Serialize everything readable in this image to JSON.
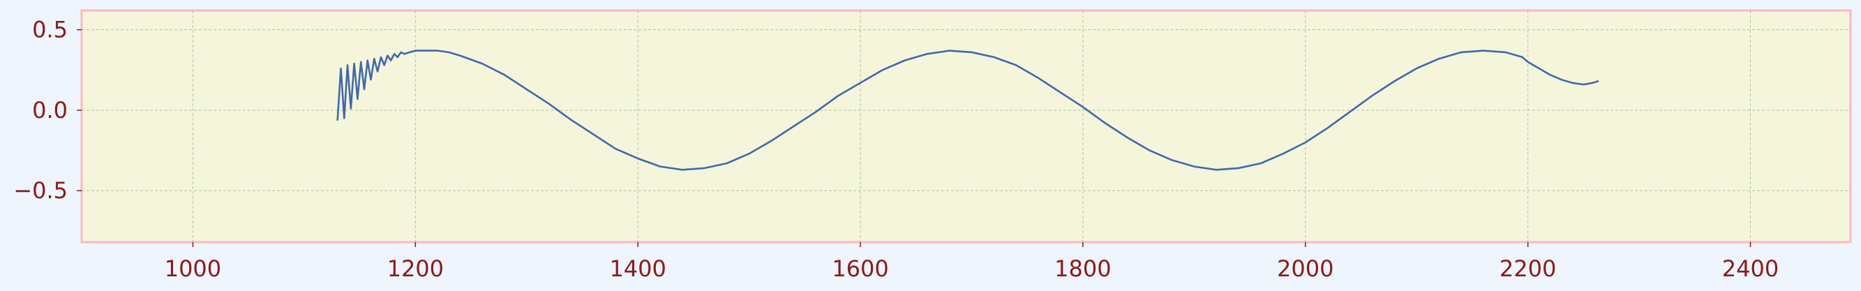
{
  "chart_data": {
    "type": "line",
    "title": "",
    "xlabel": "",
    "ylabel": "",
    "xlim": [
      900,
      2490
    ],
    "ylim": [
      -0.82,
      0.62
    ],
    "x_ticks": [
      1000,
      1200,
      1400,
      1600,
      1800,
      2000,
      2200,
      2400
    ],
    "y_ticks": [
      -0.5,
      0.0,
      0.5
    ],
    "x_tick_labels": [
      "1000",
      "1200",
      "1400",
      "1600",
      "1800",
      "2000",
      "2200",
      "2400"
    ],
    "y_tick_labels": [
      "−0.5",
      "0.0",
      "0.5"
    ],
    "grid": true,
    "legend": "none",
    "colors": {
      "plot_background": "#f5f5dc",
      "page_background": "#eef5fc",
      "frame": "#ffb6c1",
      "tick_text": "#8b1a1a"
    },
    "series": [
      {
        "color": "#4169a8",
        "x": [
          1130,
          1133,
          1136,
          1139,
          1142,
          1145,
          1148,
          1151,
          1154,
          1157,
          1160,
          1163,
          1166,
          1169,
          1172,
          1175,
          1178,
          1181,
          1184,
          1187,
          1190,
          1195,
          1200,
          1210,
          1220,
          1230,
          1240,
          1260,
          1280,
          1300,
          1320,
          1340,
          1360,
          1380,
          1400,
          1420,
          1440,
          1460,
          1480,
          1500,
          1520,
          1540,
          1560,
          1580,
          1600,
          1620,
          1640,
          1660,
          1680,
          1700,
          1720,
          1740,
          1760,
          1780,
          1800,
          1820,
          1840,
          1860,
          1880,
          1900,
          1920,
          1940,
          1960,
          1980,
          2000,
          2020,
          2040,
          2060,
          2080,
          2100,
          2120,
          2140,
          2160,
          2180,
          2195,
          2200,
          2210,
          2220,
          2230,
          2240,
          2250,
          2258,
          2263
        ],
        "y": [
          -0.06,
          0.26,
          -0.05,
          0.28,
          0.01,
          0.29,
          0.07,
          0.3,
          0.13,
          0.31,
          0.19,
          0.32,
          0.24,
          0.33,
          0.28,
          0.34,
          0.31,
          0.35,
          0.33,
          0.36,
          0.35,
          0.36,
          0.37,
          0.37,
          0.37,
          0.36,
          0.34,
          0.29,
          0.22,
          0.13,
          0.04,
          -0.06,
          -0.15,
          -0.24,
          -0.3,
          -0.35,
          -0.37,
          -0.36,
          -0.33,
          -0.27,
          -0.19,
          -0.1,
          -0.01,
          0.09,
          0.17,
          0.25,
          0.31,
          0.35,
          0.37,
          0.36,
          0.33,
          0.28,
          0.2,
          0.11,
          0.02,
          -0.08,
          -0.17,
          -0.25,
          -0.31,
          -0.35,
          -0.37,
          -0.36,
          -0.33,
          -0.27,
          -0.2,
          -0.11,
          -0.01,
          0.09,
          0.18,
          0.26,
          0.32,
          0.36,
          0.37,
          0.36,
          0.33,
          0.3,
          0.26,
          0.22,
          0.19,
          0.17,
          0.16,
          0.17,
          0.18
        ],
        "note": ""
      }
    ]
  }
}
